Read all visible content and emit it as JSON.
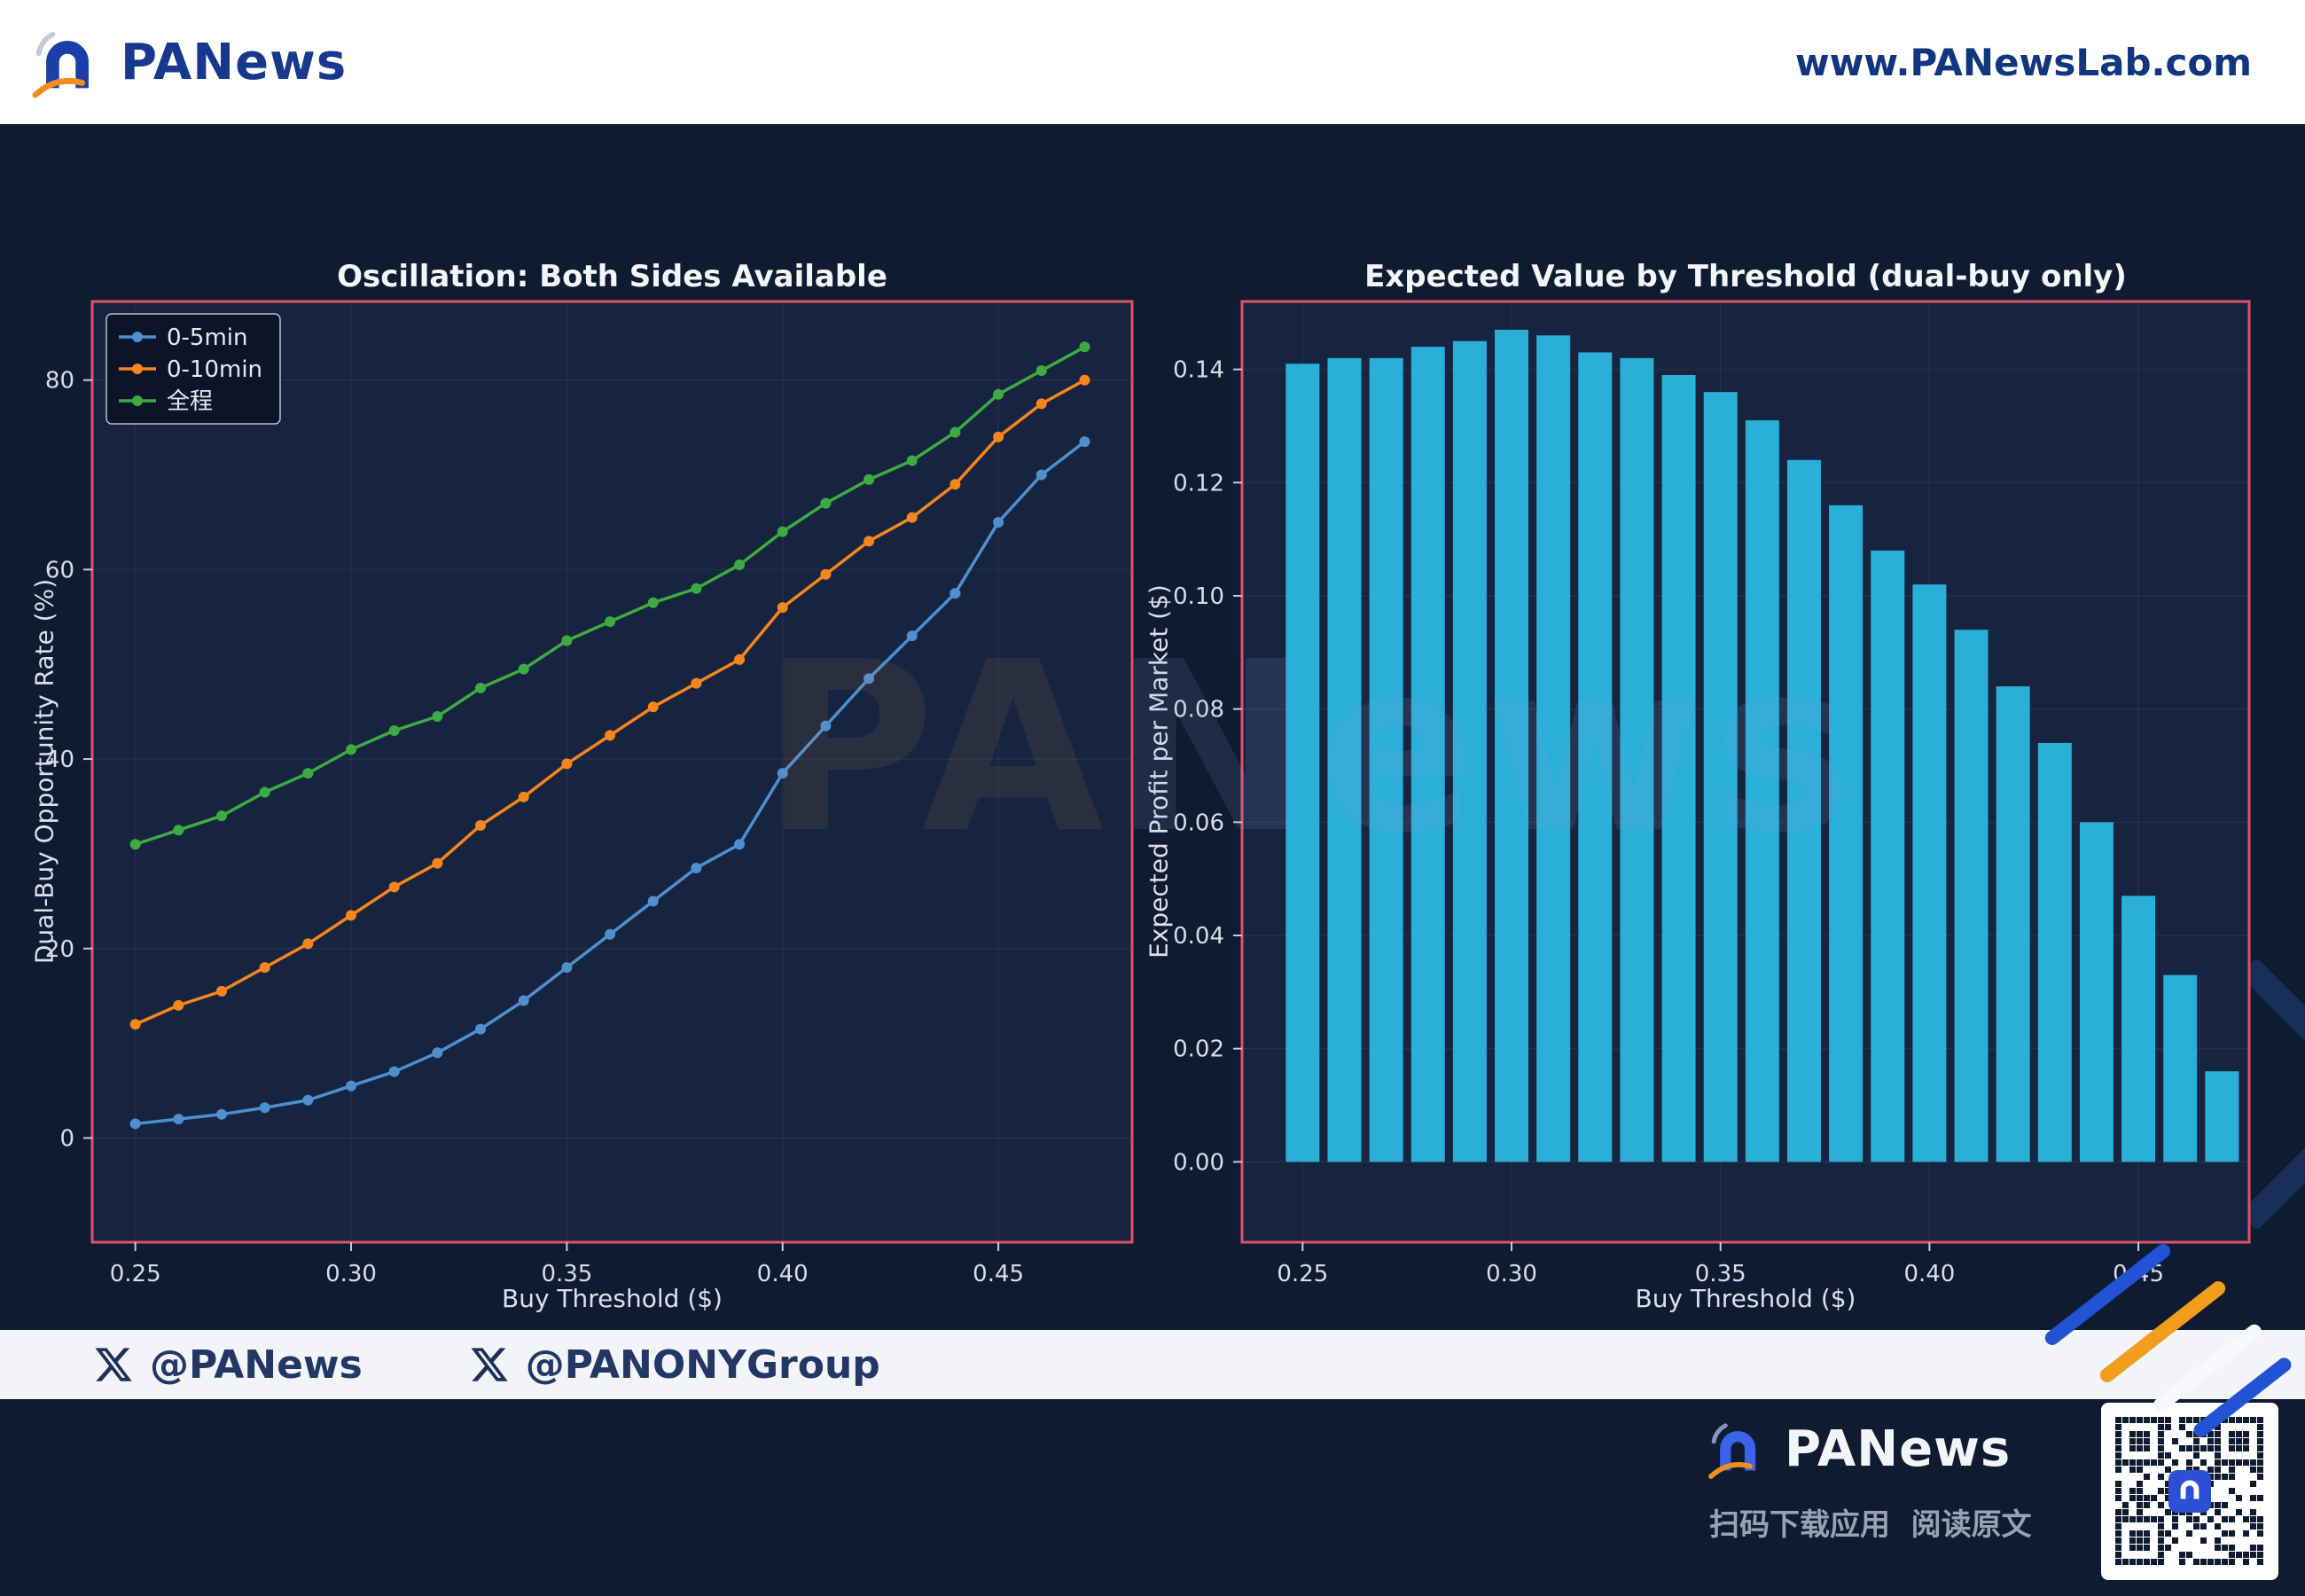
{
  "header": {
    "brand": "PANews",
    "url": "www.PANewsLab.com"
  },
  "watermark": {
    "pa": "PA",
    "rest": "News"
  },
  "footer": {
    "handles": [
      "@PANews",
      "@PANONYGroup"
    ]
  },
  "bottom": {
    "brand": "PANews",
    "caption": "扫码下载应用  阅读原文"
  },
  "colors": {
    "page_bg": "#0e1b31",
    "plot_bg": "#16243f",
    "spine": "#e0506c",
    "grid": "rgba(255,255,255,0.055)",
    "tick": "#c7cdd9",
    "tick_text": "#d9dde8",
    "legend_bg": "rgba(10,18,36,0.85)",
    "legend_edge": "#b9c0cc",
    "accent_blue": "#2153d4",
    "accent_orange": "#f39d1f"
  },
  "chart_data": [
    {
      "type": "line",
      "title": "Oscillation: Both Sides Available",
      "xlabel": "Buy Threshold ($)",
      "ylabel": "Dual-Buy Opportunity Rate (%)",
      "x": [
        0.25,
        0.26,
        0.27,
        0.28,
        0.29,
        0.3,
        0.31,
        0.32,
        0.33,
        0.34,
        0.35,
        0.36,
        0.37,
        0.38,
        0.39,
        0.4,
        0.41,
        0.42,
        0.43,
        0.44,
        0.45,
        0.46,
        0.47
      ],
      "series": [
        {
          "name": "0-5min",
          "color": "#4e8fd0",
          "values": [
            1.5,
            2.0,
            2.5,
            3.2,
            4.0,
            5.5,
            7.0,
            9.0,
            11.5,
            14.5,
            18.0,
            21.5,
            25.0,
            28.5,
            31.0,
            38.5,
            43.5,
            48.5,
            53.0,
            57.5,
            65.0,
            70.0,
            73.5
          ]
        },
        {
          "name": "0-10min",
          "color": "#f5851c",
          "values": [
            12.0,
            14.0,
            15.5,
            18.0,
            20.5,
            23.5,
            26.5,
            29.0,
            33.0,
            36.0,
            39.5,
            42.5,
            45.5,
            48.0,
            50.5,
            56.0,
            59.5,
            63.0,
            65.5,
            69.0,
            74.0,
            77.5,
            80.0
          ]
        },
        {
          "name": "全程",
          "color": "#3cab41",
          "values": [
            31.0,
            32.5,
            34.0,
            36.5,
            38.5,
            41.0,
            43.0,
            44.5,
            47.5,
            49.5,
            52.5,
            54.5,
            56.5,
            58.0,
            60.5,
            64.0,
            67.0,
            69.5,
            71.5,
            74.5,
            78.5,
            81.0,
            83.5
          ]
        }
      ],
      "xticks": [
        0.25,
        0.3,
        0.35,
        0.4,
        0.45
      ],
      "xtick_labels": [
        "0.25",
        "0.30",
        "0.35",
        "0.40",
        "0.45"
      ],
      "yticks": [
        0,
        20,
        40,
        60,
        80
      ],
      "ytick_labels": [
        "0",
        "20",
        "40",
        "60",
        "80"
      ],
      "xlim": [
        0.24,
        0.481
      ],
      "ylim": [
        -11,
        88.3
      ],
      "grid": true,
      "legend_position": "upper left"
    },
    {
      "type": "bar",
      "title": "Expected Value by Threshold (dual-buy only)",
      "xlabel": "Buy Threshold ($)",
      "ylabel": "Expected Profit per Market ($)",
      "x": [
        0.25,
        0.26,
        0.27,
        0.28,
        0.29,
        0.3,
        0.31,
        0.32,
        0.33,
        0.34,
        0.35,
        0.36,
        0.37,
        0.38,
        0.39,
        0.4,
        0.41,
        0.42,
        0.43,
        0.44,
        0.45,
        0.46,
        0.47
      ],
      "values": [
        0.141,
        0.142,
        0.142,
        0.144,
        0.145,
        0.147,
        0.146,
        0.143,
        0.142,
        0.139,
        0.136,
        0.131,
        0.124,
        0.116,
        0.108,
        0.102,
        0.094,
        0.084,
        0.074,
        0.06,
        0.047,
        0.033,
        0.016
      ],
      "bar_color": "#29afd8",
      "xticks": [
        0.25,
        0.3,
        0.35,
        0.4,
        0.45
      ],
      "xtick_labels": [
        "0.25",
        "0.30",
        "0.35",
        "0.40",
        "0.45"
      ],
      "yticks": [
        0.0,
        0.02,
        0.04,
        0.06,
        0.08,
        0.1,
        0.12,
        0.14
      ],
      "ytick_labels": [
        "0.00",
        "0.02",
        "0.04",
        "0.06",
        "0.08",
        "0.10",
        "0.12",
        "0.14"
      ],
      "xlim": [
        0.2355,
        0.4765
      ],
      "ylim": [
        -0.0142,
        0.152
      ],
      "grid": true
    }
  ]
}
